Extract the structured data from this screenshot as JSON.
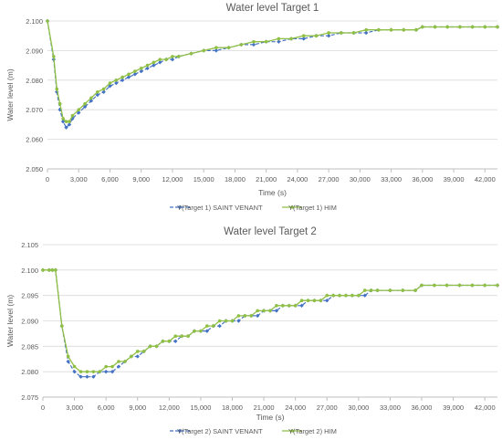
{
  "colors": {
    "saint_venant": "#4472c4",
    "him": "#8fbf44",
    "grid": "#d9d9d9",
    "axis": "#bfbfbf",
    "text": "#595959"
  },
  "chart_data": [
    {
      "type": "line",
      "title": "Water level Target 1",
      "xlabel": "Time (s)",
      "ylabel": "Water level (m)",
      "xlim": [
        0,
        43200
      ],
      "ylim": [
        2.05,
        2.1
      ],
      "x_ticks": [
        "0",
        "3,000",
        "6,000",
        "9,000",
        "12,000",
        "15,000",
        "18,000",
        "21,000",
        "24,000",
        "27,000",
        "30,000",
        "33,000",
        "36,000",
        "39,000",
        "42,000"
      ],
      "y_ticks": [
        "2.050",
        "2.060",
        "2.070",
        "2.080",
        "2.090",
        "2.100"
      ],
      "grid": "horizontal",
      "legend_position": "bottom",
      "series": [
        {
          "name": "Y(Target 1) SAINT VENANT",
          "style": "dashed-diamond",
          "points": [
            [
              0,
              2.1
            ],
            [
              600,
              2.087
            ],
            [
              900,
              2.076
            ],
            [
              1200,
              2.07
            ],
            [
              1500,
              2.066
            ],
            [
              1800,
              2.064
            ],
            [
              2100,
              2.065
            ],
            [
              2400,
              2.067
            ],
            [
              3000,
              2.069
            ],
            [
              3600,
              2.071
            ],
            [
              4200,
              2.073
            ],
            [
              4800,
              2.075
            ],
            [
              5400,
              2.076
            ],
            [
              6000,
              2.078
            ],
            [
              6600,
              2.079
            ],
            [
              7200,
              2.08
            ],
            [
              7800,
              2.081
            ],
            [
              8400,
              2.082
            ],
            [
              9000,
              2.083
            ],
            [
              9600,
              2.084
            ],
            [
              10200,
              2.085
            ],
            [
              10800,
              2.086
            ],
            [
              11400,
              2.087
            ],
            [
              12000,
              2.087
            ],
            [
              12600,
              2.088
            ],
            [
              13800,
              2.089
            ],
            [
              15000,
              2.09
            ],
            [
              16200,
              2.09
            ],
            [
              17400,
              2.091
            ],
            [
              18600,
              2.092
            ],
            [
              19800,
              2.092
            ],
            [
              21000,
              2.093
            ],
            [
              22200,
              2.093
            ],
            [
              23400,
              2.094
            ],
            [
              24600,
              2.094
            ],
            [
              25800,
              2.095
            ],
            [
              27000,
              2.095
            ],
            [
              28200,
              2.096
            ],
            [
              29400,
              2.096
            ],
            [
              30600,
              2.096
            ],
            [
              31800,
              2.097
            ],
            [
              33000,
              2.097
            ],
            [
              34200,
              2.097
            ],
            [
              35400,
              2.097
            ],
            [
              36000,
              2.098
            ],
            [
              37200,
              2.098
            ],
            [
              38400,
              2.098
            ],
            [
              39600,
              2.098
            ],
            [
              40800,
              2.098
            ],
            [
              42000,
              2.098
            ],
            [
              43200,
              2.098
            ]
          ]
        },
        {
          "name": "Y(Target 1) HIM",
          "style": "solid-circle",
          "points": [
            [
              0,
              2.1
            ],
            [
              600,
              2.088
            ],
            [
              900,
              2.077
            ],
            [
              1200,
              2.072
            ],
            [
              1500,
              2.067
            ],
            [
              1800,
              2.066
            ],
            [
              2100,
              2.066
            ],
            [
              2400,
              2.068
            ],
            [
              3000,
              2.07
            ],
            [
              3600,
              2.072
            ],
            [
              4200,
              2.074
            ],
            [
              4800,
              2.076
            ],
            [
              5400,
              2.077
            ],
            [
              6000,
              2.079
            ],
            [
              6600,
              2.08
            ],
            [
              7200,
              2.081
            ],
            [
              7800,
              2.082
            ],
            [
              8400,
              2.083
            ],
            [
              9000,
              2.084
            ],
            [
              9600,
              2.085
            ],
            [
              10200,
              2.086
            ],
            [
              10800,
              2.087
            ],
            [
              11400,
              2.087
            ],
            [
              12000,
              2.088
            ],
            [
              12600,
              2.088
            ],
            [
              13800,
              2.089
            ],
            [
              15000,
              2.09
            ],
            [
              16200,
              2.091
            ],
            [
              17400,
              2.091
            ],
            [
              18600,
              2.092
            ],
            [
              19800,
              2.093
            ],
            [
              21000,
              2.093
            ],
            [
              22200,
              2.094
            ],
            [
              23400,
              2.094
            ],
            [
              24600,
              2.095
            ],
            [
              25800,
              2.095
            ],
            [
              27000,
              2.096
            ],
            [
              28200,
              2.096
            ],
            [
              29400,
              2.096
            ],
            [
              30600,
              2.097
            ],
            [
              31800,
              2.097
            ],
            [
              33000,
              2.097
            ],
            [
              34200,
              2.097
            ],
            [
              35400,
              2.097
            ],
            [
              36000,
              2.098
            ],
            [
              37200,
              2.098
            ],
            [
              38400,
              2.098
            ],
            [
              39600,
              2.098
            ],
            [
              40800,
              2.098
            ],
            [
              42000,
              2.098
            ],
            [
              43200,
              2.098
            ]
          ]
        }
      ]
    },
    {
      "type": "line",
      "title": "Water level Target 2",
      "xlabel": "Time (s)",
      "ylabel": "Water level (m)",
      "xlim": [
        0,
        43200
      ],
      "ylim": [
        2.075,
        2.105
      ],
      "x_ticks": [
        "0",
        "3,000",
        "6,000",
        "9,000",
        "12,000",
        "15,000",
        "18,000",
        "21,000",
        "24,000",
        "27,000",
        "30,000",
        "33,000",
        "36,000",
        "39,000",
        "42,000"
      ],
      "y_ticks": [
        "2.075",
        "2.080",
        "2.085",
        "2.090",
        "2.095",
        "2.100",
        "2.105"
      ],
      "grid": "horizontal",
      "legend_position": "bottom",
      "series": [
        {
          "name": "Y(Target 2) SAINT VENANT",
          "style": "dashed-diamond",
          "points": [
            [
              0,
              2.1
            ],
            [
              600,
              2.1
            ],
            [
              900,
              2.1
            ],
            [
              1200,
              2.1
            ],
            [
              1800,
              2.089
            ],
            [
              2400,
              2.082
            ],
            [
              3000,
              2.08
            ],
            [
              3600,
              2.079
            ],
            [
              4200,
              2.079
            ],
            [
              4800,
              2.079
            ],
            [
              5400,
              2.08
            ],
            [
              6000,
              2.08
            ],
            [
              6600,
              2.08
            ],
            [
              7200,
              2.081
            ],
            [
              7800,
              2.082
            ],
            [
              8400,
              2.083
            ],
            [
              9000,
              2.083
            ],
            [
              9600,
              2.084
            ],
            [
              10200,
              2.085
            ],
            [
              10800,
              2.085
            ],
            [
              11400,
              2.086
            ],
            [
              12000,
              2.086
            ],
            [
              12600,
              2.086
            ],
            [
              13200,
              2.087
            ],
            [
              13800,
              2.087
            ],
            [
              14400,
              2.088
            ],
            [
              15000,
              2.088
            ],
            [
              15600,
              2.088
            ],
            [
              16200,
              2.089
            ],
            [
              16800,
              2.089
            ],
            [
              17400,
              2.09
            ],
            [
              18000,
              2.09
            ],
            [
              18600,
              2.09
            ],
            [
              19200,
              2.091
            ],
            [
              19800,
              2.091
            ],
            [
              20400,
              2.091
            ],
            [
              21000,
              2.092
            ],
            [
              21600,
              2.092
            ],
            [
              22200,
              2.092
            ],
            [
              22800,
              2.093
            ],
            [
              23400,
              2.093
            ],
            [
              24000,
              2.093
            ],
            [
              24600,
              2.093
            ],
            [
              25200,
              2.094
            ],
            [
              25800,
              2.094
            ],
            [
              26400,
              2.094
            ],
            [
              27000,
              2.094
            ],
            [
              27600,
              2.095
            ],
            [
              28200,
              2.095
            ],
            [
              28800,
              2.095
            ],
            [
              29400,
              2.095
            ],
            [
              30000,
              2.095
            ],
            [
              30600,
              2.095
            ],
            [
              31200,
              2.096
            ],
            [
              31800,
              2.096
            ],
            [
              33000,
              2.096
            ],
            [
              34200,
              2.096
            ],
            [
              35400,
              2.096
            ],
            [
              36000,
              2.097
            ],
            [
              37200,
              2.097
            ],
            [
              38400,
              2.097
            ],
            [
              39600,
              2.097
            ],
            [
              40800,
              2.097
            ],
            [
              42000,
              2.097
            ],
            [
              43200,
              2.097
            ]
          ]
        },
        {
          "name": "Y(Target 2) HIM",
          "style": "solid-circle",
          "points": [
            [
              0,
              2.1
            ],
            [
              600,
              2.1
            ],
            [
              900,
              2.1
            ],
            [
              1200,
              2.1
            ],
            [
              1800,
              2.089
            ],
            [
              2400,
              2.083
            ],
            [
              3000,
              2.081
            ],
            [
              3600,
              2.08
            ],
            [
              4200,
              2.08
            ],
            [
              4800,
              2.08
            ],
            [
              5400,
              2.08
            ],
            [
              6000,
              2.081
            ],
            [
              6600,
              2.081
            ],
            [
              7200,
              2.082
            ],
            [
              7800,
              2.082
            ],
            [
              8400,
              2.083
            ],
            [
              9000,
              2.084
            ],
            [
              9600,
              2.084
            ],
            [
              10200,
              2.085
            ],
            [
              10800,
              2.085
            ],
            [
              11400,
              2.086
            ],
            [
              12000,
              2.086
            ],
            [
              12600,
              2.087
            ],
            [
              13200,
              2.087
            ],
            [
              13800,
              2.087
            ],
            [
              14400,
              2.088
            ],
            [
              15000,
              2.088
            ],
            [
              15600,
              2.089
            ],
            [
              16200,
              2.089
            ],
            [
              16800,
              2.09
            ],
            [
              17400,
              2.09
            ],
            [
              18000,
              2.09
            ],
            [
              18600,
              2.091
            ],
            [
              19200,
              2.091
            ],
            [
              19800,
              2.091
            ],
            [
              20400,
              2.092
            ],
            [
              21000,
              2.092
            ],
            [
              21600,
              2.092
            ],
            [
              22200,
              2.093
            ],
            [
              22800,
              2.093
            ],
            [
              23400,
              2.093
            ],
            [
              24000,
              2.093
            ],
            [
              24600,
              2.094
            ],
            [
              25200,
              2.094
            ],
            [
              25800,
              2.094
            ],
            [
              26400,
              2.094
            ],
            [
              27000,
              2.095
            ],
            [
              27600,
              2.095
            ],
            [
              28200,
              2.095
            ],
            [
              28800,
              2.095
            ],
            [
              29400,
              2.095
            ],
            [
              30000,
              2.095
            ],
            [
              30600,
              2.096
            ],
            [
              31200,
              2.096
            ],
            [
              31800,
              2.096
            ],
            [
              33000,
              2.096
            ],
            [
              34200,
              2.096
            ],
            [
              35400,
              2.096
            ],
            [
              36000,
              2.097
            ],
            [
              37200,
              2.097
            ],
            [
              38400,
              2.097
            ],
            [
              39600,
              2.097
            ],
            [
              40800,
              2.097
            ],
            [
              42000,
              2.097
            ],
            [
              43200,
              2.097
            ]
          ]
        }
      ]
    }
  ]
}
